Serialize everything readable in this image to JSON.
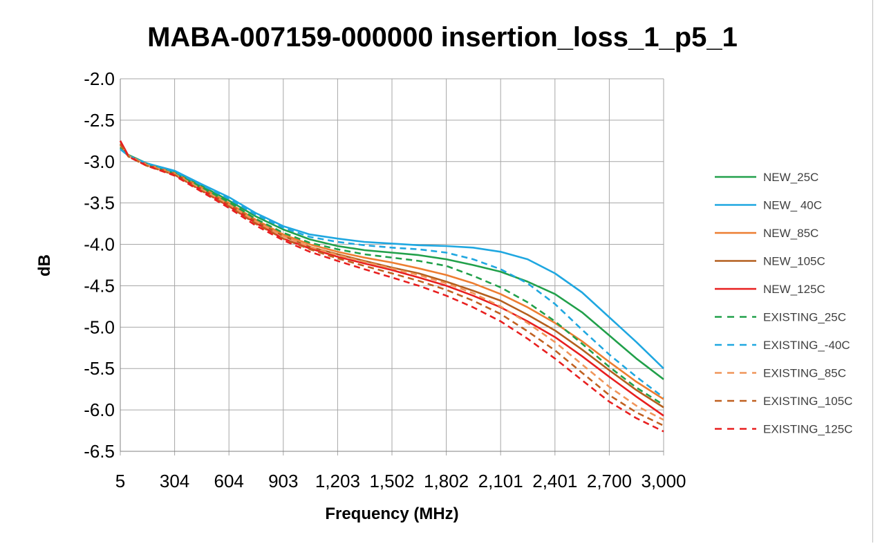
{
  "chart_data": {
    "type": "line",
    "title": "MABA-007159-000000 insertion_loss_1_p5_1",
    "xlabel": "Frequency (MHz)",
    "ylabel": "dB",
    "x_tick_labels": [
      "5",
      "304",
      "604",
      "903",
      "1,203",
      "1,502",
      "1,802",
      "2,101",
      "2,401",
      "2,700",
      "3,000"
    ],
    "xlim": [
      5,
      3000
    ],
    "ylim": [
      -6.5,
      -2.0
    ],
    "y_ticks": [
      -2.0,
      -2.5,
      -3.0,
      -3.5,
      -4.0,
      -4.5,
      -5.0,
      -5.5,
      -6.0,
      -6.5
    ],
    "grid": true,
    "legend_position": "right",
    "x": [
      5,
      50,
      150,
      304,
      450,
      604,
      750,
      903,
      1050,
      1203,
      1350,
      1502,
      1650,
      1802,
      1950,
      2101,
      2250,
      2401,
      2550,
      2700,
      2850,
      3000
    ],
    "series": [
      {
        "name": "NEW_25C",
        "color": "#21a04a",
        "dash": "solid",
        "values": [
          -2.83,
          -2.92,
          -3.02,
          -3.13,
          -3.29,
          -3.47,
          -3.66,
          -3.82,
          -3.94,
          -4.02,
          -4.07,
          -4.1,
          -4.13,
          -4.18,
          -4.25,
          -4.33,
          -4.45,
          -4.6,
          -4.82,
          -5.1,
          -5.38,
          -5.63
        ]
      },
      {
        "name": "NEW_ 40C",
        "color": "#1fa7e0",
        "dash": "solid",
        "values": [
          -2.85,
          -2.93,
          -3.02,
          -3.11,
          -3.27,
          -3.43,
          -3.62,
          -3.78,
          -3.88,
          -3.93,
          -3.97,
          -3.99,
          -4.01,
          -4.02,
          -4.04,
          -4.09,
          -4.18,
          -4.35,
          -4.58,
          -4.88,
          -5.18,
          -5.5
        ]
      },
      {
        "name": "NEW_85C",
        "color": "#ed7d31",
        "dash": "solid",
        "values": [
          -2.8,
          -2.93,
          -3.03,
          -3.14,
          -3.31,
          -3.5,
          -3.7,
          -3.88,
          -4.0,
          -4.09,
          -4.16,
          -4.22,
          -4.29,
          -4.37,
          -4.47,
          -4.6,
          -4.76,
          -4.95,
          -5.17,
          -5.42,
          -5.66,
          -5.87
        ]
      },
      {
        "name": "NEW_105C",
        "color": "#b45f1e",
        "dash": "solid",
        "values": [
          -2.79,
          -2.93,
          -3.04,
          -3.15,
          -3.33,
          -3.52,
          -3.72,
          -3.9,
          -4.03,
          -4.12,
          -4.2,
          -4.28,
          -4.35,
          -4.45,
          -4.56,
          -4.68,
          -4.85,
          -5.04,
          -5.27,
          -5.52,
          -5.76,
          -5.97
        ]
      },
      {
        "name": "NEW_125C",
        "color": "#e81f1f",
        "dash": "solid",
        "values": [
          -2.75,
          -2.93,
          -3.04,
          -3.16,
          -3.34,
          -3.54,
          -3.74,
          -3.93,
          -4.05,
          -4.15,
          -4.23,
          -4.31,
          -4.4,
          -4.5,
          -4.62,
          -4.76,
          -4.93,
          -5.12,
          -5.35,
          -5.6,
          -5.84,
          -6.07
        ]
      },
      {
        "name": "EXISTING_25C",
        "color": "#21a04a",
        "dash": "dashed",
        "values": [
          -2.83,
          -2.93,
          -3.03,
          -3.14,
          -3.31,
          -3.49,
          -3.69,
          -3.86,
          -3.98,
          -4.06,
          -4.12,
          -4.16,
          -4.2,
          -4.26,
          -4.38,
          -4.52,
          -4.7,
          -4.93,
          -5.2,
          -5.48,
          -5.73,
          -5.94
        ]
      },
      {
        "name": "EXISTING_-40C",
        "color": "#1fa7e0",
        "dash": "dashed",
        "values": [
          -2.85,
          -2.93,
          -3.02,
          -3.12,
          -3.28,
          -3.45,
          -3.64,
          -3.8,
          -3.91,
          -3.97,
          -4.01,
          -4.04,
          -4.06,
          -4.1,
          -4.18,
          -4.3,
          -4.47,
          -4.72,
          -5.03,
          -5.33,
          -5.6,
          -5.85
        ]
      },
      {
        "name": "EXISTING_85C",
        "color": "#f0955a",
        "dash": "dashed",
        "values": [
          -2.8,
          -2.93,
          -3.04,
          -3.15,
          -3.33,
          -3.52,
          -3.72,
          -3.9,
          -4.03,
          -4.13,
          -4.21,
          -4.29,
          -4.37,
          -4.47,
          -4.59,
          -4.75,
          -4.95,
          -5.18,
          -5.45,
          -5.72,
          -5.95,
          -6.12
        ]
      },
      {
        "name": "EXISTING_105C",
        "color": "#c06020",
        "dash": "dashed",
        "values": [
          -2.79,
          -2.94,
          -3.05,
          -3.16,
          -3.35,
          -3.54,
          -3.75,
          -3.93,
          -4.06,
          -4.17,
          -4.26,
          -4.35,
          -4.44,
          -4.55,
          -4.68,
          -4.84,
          -5.05,
          -5.28,
          -5.55,
          -5.82,
          -6.03,
          -6.19
        ]
      },
      {
        "name": "EXISTING_125C",
        "color": "#e81f1f",
        "dash": "dashed",
        "values": [
          -2.75,
          -2.94,
          -3.05,
          -3.17,
          -3.36,
          -3.56,
          -3.77,
          -3.95,
          -4.09,
          -4.2,
          -4.3,
          -4.4,
          -4.5,
          -4.62,
          -4.76,
          -4.93,
          -5.14,
          -5.38,
          -5.64,
          -5.9,
          -6.1,
          -6.26
        ]
      }
    ]
  }
}
